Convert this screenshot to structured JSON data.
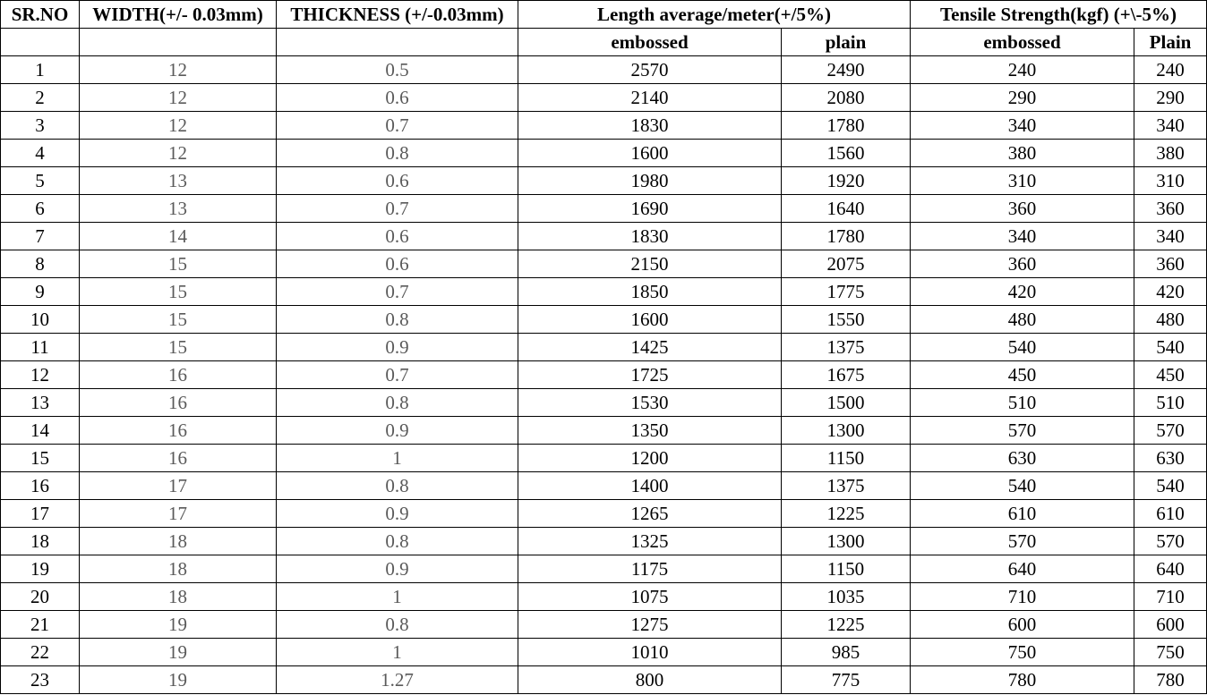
{
  "headers": {
    "srno": "SR.NO",
    "width": "WIDTH(+/- 0.03mm)",
    "thickness": "THICKNESS (+/-0.03mm)",
    "length": "Length average/meter(+/5%)",
    "tensile": "Tensile Strength(kgf) (+\\-5%)",
    "length_embossed": "embossed",
    "length_plain": "plain",
    "tensile_embossed": "embossed",
    "tensile_plain": "Plain"
  },
  "rows": [
    {
      "sr": "1",
      "width": "12",
      "thickness": "0.5",
      "len_emb": "2570",
      "len_plain": "2490",
      "ts_emb": "240",
      "ts_plain": "240"
    },
    {
      "sr": "2",
      "width": "12",
      "thickness": "0.6",
      "len_emb": "2140",
      "len_plain": "2080",
      "ts_emb": "290",
      "ts_plain": "290"
    },
    {
      "sr": "3",
      "width": "12",
      "thickness": "0.7",
      "len_emb": "1830",
      "len_plain": "1780",
      "ts_emb": "340",
      "ts_plain": "340"
    },
    {
      "sr": "4",
      "width": "12",
      "thickness": "0.8",
      "len_emb": "1600",
      "len_plain": "1560",
      "ts_emb": "380",
      "ts_plain": "380"
    },
    {
      "sr": "5",
      "width": "13",
      "thickness": "0.6",
      "len_emb": "1980",
      "len_plain": "1920",
      "ts_emb": "310",
      "ts_plain": "310"
    },
    {
      "sr": "6",
      "width": "13",
      "thickness": "0.7",
      "len_emb": "1690",
      "len_plain": "1640",
      "ts_emb": "360",
      "ts_plain": "360"
    },
    {
      "sr": "7",
      "width": "14",
      "thickness": "0.6",
      "len_emb": "1830",
      "len_plain": "1780",
      "ts_emb": "340",
      "ts_plain": "340"
    },
    {
      "sr": "8",
      "width": "15",
      "thickness": "0.6",
      "len_emb": "2150",
      "len_plain": "2075",
      "ts_emb": "360",
      "ts_plain": "360"
    },
    {
      "sr": "9",
      "width": "15",
      "thickness": "0.7",
      "len_emb": "1850",
      "len_plain": "1775",
      "ts_emb": "420",
      "ts_plain": "420"
    },
    {
      "sr": "10",
      "width": "15",
      "thickness": "0.8",
      "len_emb": "1600",
      "len_plain": "1550",
      "ts_emb": "480",
      "ts_plain": "480"
    },
    {
      "sr": "11",
      "width": "15",
      "thickness": "0.9",
      "len_emb": "1425",
      "len_plain": "1375",
      "ts_emb": "540",
      "ts_plain": "540"
    },
    {
      "sr": "12",
      "width": "16",
      "thickness": "0.7",
      "len_emb": "1725",
      "len_plain": "1675",
      "ts_emb": "450",
      "ts_plain": "450"
    },
    {
      "sr": "13",
      "width": "16",
      "thickness": "0.8",
      "len_emb": "1530",
      "len_plain": "1500",
      "ts_emb": "510",
      "ts_plain": "510"
    },
    {
      "sr": "14",
      "width": "16",
      "thickness": "0.9",
      "len_emb": "1350",
      "len_plain": "1300",
      "ts_emb": "570",
      "ts_plain": "570"
    },
    {
      "sr": "15",
      "width": "16",
      "thickness": "1",
      "len_emb": "1200",
      "len_plain": "1150",
      "ts_emb": "630",
      "ts_plain": "630"
    },
    {
      "sr": "16",
      "width": "17",
      "thickness": "0.8",
      "len_emb": "1400",
      "len_plain": "1375",
      "ts_emb": "540",
      "ts_plain": "540"
    },
    {
      "sr": "17",
      "width": "17",
      "thickness": "0.9",
      "len_emb": "1265",
      "len_plain": "1225",
      "ts_emb": "610",
      "ts_plain": "610"
    },
    {
      "sr": "18",
      "width": "18",
      "thickness": "0.8",
      "len_emb": "1325",
      "len_plain": "1300",
      "ts_emb": "570",
      "ts_plain": "570"
    },
    {
      "sr": "19",
      "width": "18",
      "thickness": "0.9",
      "len_emb": "1175",
      "len_plain": "1150",
      "ts_emb": "640",
      "ts_plain": "640"
    },
    {
      "sr": "20",
      "width": "18",
      "thickness": "1",
      "len_emb": "1075",
      "len_plain": "1035",
      "ts_emb": "710",
      "ts_plain": "710"
    },
    {
      "sr": "21",
      "width": "19",
      "thickness": "0.8",
      "len_emb": "1275",
      "len_plain": "1225",
      "ts_emb": "600",
      "ts_plain": "600"
    },
    {
      "sr": "22",
      "width": "19",
      "thickness": "1",
      "len_emb": "1010",
      "len_plain": "985",
      "ts_emb": "750",
      "ts_plain": "750"
    },
    {
      "sr": "23",
      "width": "19",
      "thickness": "1.27",
      "len_emb": "800",
      "len_plain": "775",
      "ts_emb": "780",
      "ts_plain": "780"
    }
  ],
  "colors": {
    "text": "#000000",
    "muted_text": "#5a5a5a",
    "border": "#000000",
    "background": "#ffffff"
  }
}
